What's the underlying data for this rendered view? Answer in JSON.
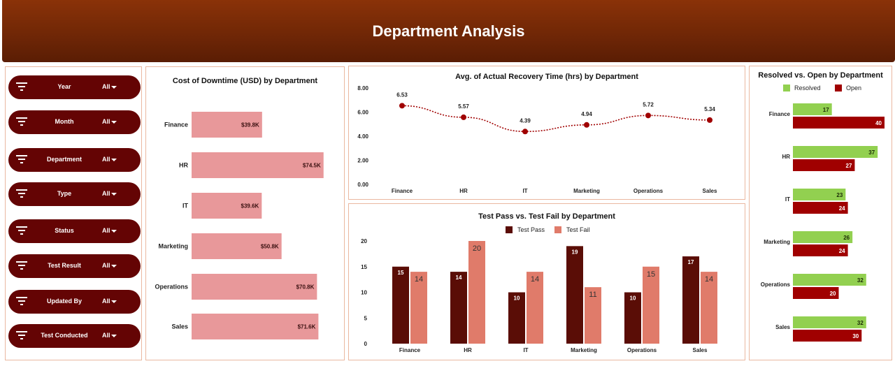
{
  "header": {
    "title": "Department Analysis"
  },
  "filters": [
    {
      "label": "Year",
      "value": "All"
    },
    {
      "label": "Month",
      "value": "All"
    },
    {
      "label": "Department",
      "value": "All"
    },
    {
      "label": "Type",
      "value": "All"
    },
    {
      "label": "Status",
      "value": "All"
    },
    {
      "label": "Test Result",
      "value": "All"
    },
    {
      "label": "Updated By",
      "value": "All"
    },
    {
      "label": "Test Conducted",
      "value": "All"
    }
  ],
  "colors": {
    "header": "#7a2b07",
    "filter_bg": "#640404",
    "cost_bar": "#e8989a",
    "recovery_line": "#a00000",
    "test_pass": "#5a0d06",
    "test_fail": "#e07b6a",
    "resolved": "#92d050",
    "open": "#a00000"
  },
  "chart_data": [
    {
      "type": "bar",
      "orientation": "horizontal",
      "title": "Cost of Downtime (USD) by Department",
      "categories": [
        "Finance",
        "HR",
        "IT",
        "Marketing",
        "Operations",
        "Sales"
      ],
      "values": [
        39.8,
        74.5,
        39.6,
        50.8,
        70.8,
        71.6
      ],
      "data_labels": [
        "$39.8K",
        "$74.5K",
        "$39.6K",
        "$50.8K",
        "$70.8K",
        "$71.6K"
      ],
      "xlim": [
        0,
        75
      ]
    },
    {
      "type": "line",
      "title": "Avg. of Actual Recovery Time (hrs) by Department",
      "categories": [
        "Finance",
        "HR",
        "IT",
        "Marketing",
        "Operations",
        "Sales"
      ],
      "values": [
        6.53,
        5.57,
        4.39,
        4.94,
        5.72,
        5.34
      ],
      "data_labels": [
        "6.53",
        "5.57",
        "4.39",
        "4.94",
        "5.72",
        "5.34"
      ],
      "yticks": [
        "8.00",
        "6.00",
        "4.00",
        "2.00",
        "0.00"
      ],
      "ylim": [
        0,
        8
      ]
    },
    {
      "type": "bar",
      "title": "Test Pass vs. Test Fail by Department",
      "categories": [
        "Finance",
        "HR",
        "IT",
        "Marketing",
        "Operations",
        "Sales"
      ],
      "series": [
        {
          "name": "Test Pass",
          "values": [
            15,
            14,
            10,
            19,
            10,
            17
          ]
        },
        {
          "name": "Test Fail",
          "values": [
            14,
            20,
            14,
            11,
            15,
            14
          ]
        }
      ],
      "yticks": [
        "20",
        "15",
        "10",
        "5",
        "0"
      ],
      "ylim": [
        0,
        20
      ],
      "legend": "top"
    },
    {
      "type": "bar",
      "orientation": "horizontal",
      "title": "Resolved vs. Open by Department",
      "categories": [
        "Finance",
        "HR",
        "IT",
        "Marketing",
        "Operations",
        "Sales"
      ],
      "series": [
        {
          "name": "Resolved",
          "values": [
            17,
            37,
            23,
            26,
            32,
            32
          ]
        },
        {
          "name": "Open",
          "values": [
            40,
            27,
            24,
            24,
            20,
            30
          ]
        }
      ],
      "xlim": [
        0,
        40
      ],
      "legend": "top"
    }
  ]
}
